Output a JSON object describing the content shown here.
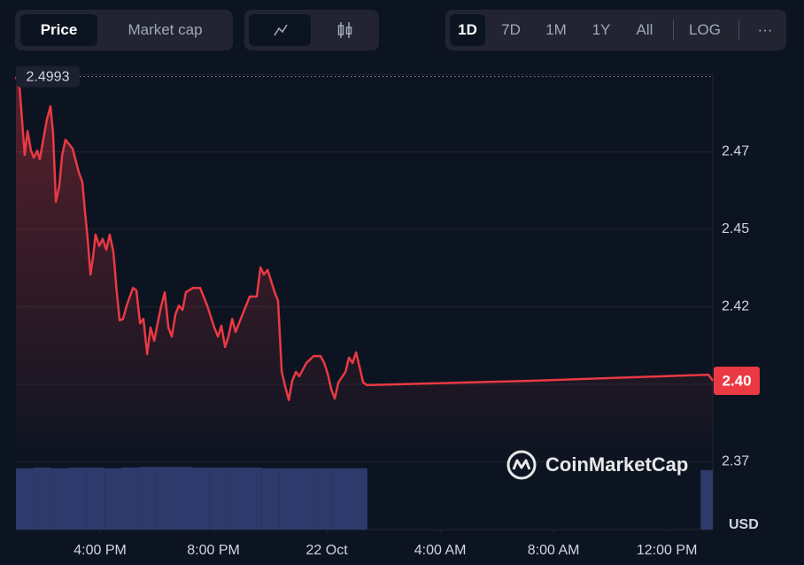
{
  "toolbar": {
    "views": [
      "Price",
      "Market cap"
    ],
    "ranges": [
      "1D",
      "7D",
      "1M",
      "1Y",
      "All"
    ],
    "log": "LOG",
    "more": "···"
  },
  "chart_data": {
    "type": "line",
    "color": "#ea3943",
    "x": [
      13.03,
      13.16,
      13.34,
      13.44,
      13.56,
      13.66,
      13.78,
      13.87,
      14.12,
      14.25,
      14.34,
      14.44,
      14.56,
      14.66,
      14.78,
      15.03,
      15.25,
      15.37,
      15.47,
      15.56,
      15.66,
      15.75,
      15.84,
      15.97,
      16.09,
      16.22,
      16.34,
      16.47,
      16.59,
      16.69,
      16.81,
      16.94,
      17.16,
      17.28,
      17.41,
      17.53,
      17.66,
      17.78,
      17.91,
      18.03,
      18.16,
      18.28,
      18.41,
      18.53,
      18.66,
      18.78,
      18.91,
      19.03,
      19.28,
      19.53,
      19.78,
      20.03,
      20.16,
      20.28,
      20.41,
      20.53,
      20.66,
      20.78,
      21.03,
      21.28,
      21.53,
      21.66,
      21.78,
      21.91,
      22.16,
      22.28,
      22.41,
      22.53,
      22.66,
      22.78,
      22.91,
      23.03,
      23.28,
      23.53,
      23.78,
      23.91,
      24.03,
      24.16,
      24.28,
      24.41,
      24.66,
      24.78,
      24.91,
      25.03,
      25.16,
      25.28,
      25.41,
      31.22,
      37.47,
      37.62
    ],
    "values": [
      2.4993,
      2.4954,
      2.474,
      2.4817,
      2.4754,
      2.4731,
      2.4754,
      2.4726,
      2.4854,
      2.4897,
      2.4811,
      2.4589,
      2.464,
      2.474,
      2.4789,
      2.476,
      2.4683,
      2.4654,
      2.4554,
      2.4469,
      2.4354,
      2.4411,
      2.4483,
      2.4446,
      2.4469,
      2.4434,
      2.4483,
      2.4426,
      2.4297,
      2.4206,
      2.4211,
      2.4254,
      2.4311,
      2.4303,
      2.4197,
      2.4211,
      2.4097,
      2.4183,
      2.414,
      2.4197,
      2.4254,
      2.4297,
      2.4183,
      2.4154,
      2.4226,
      2.4254,
      2.424,
      2.4297,
      2.4311,
      2.4311,
      2.4254,
      2.4183,
      2.4154,
      2.4189,
      2.412,
      2.4154,
      2.4211,
      2.4169,
      2.4226,
      2.4283,
      2.4283,
      2.4377,
      2.4354,
      2.4369,
      2.4297,
      2.4269,
      2.404,
      2.3994,
      2.3949,
      2.4011,
      2.404,
      2.4026,
      2.4069,
      2.4091,
      2.4091,
      2.4069,
      2.4034,
      2.3983,
      2.3954,
      2.4006,
      2.404,
      2.4086,
      2.4069,
      2.4103,
      2.4054,
      2.4006,
      2.3997,
      2.4011,
      2.4031,
      2.4011
    ],
    "high": 2.4993,
    "last_label": "2.40",
    "xlim": [
      13.03,
      37.62
    ],
    "xticks": [
      {
        "value": 16,
        "label": "4:00 PM"
      },
      {
        "value": 20,
        "label": "8:00 PM"
      },
      {
        "value": 24,
        "label": "22 Oct"
      },
      {
        "value": 28,
        "label": "4:00 AM"
      },
      {
        "value": 32,
        "label": "8:00 AM"
      },
      {
        "value": 36,
        "label": "12:00 PM"
      }
    ],
    "ylim": [
      2.3531,
      2.5
    ],
    "yticks": [
      {
        "value": 2.375,
        "label": "2.37"
      },
      {
        "value": 2.4,
        "label": "2.40"
      },
      {
        "value": 2.425,
        "label": "2.42"
      },
      2.45,
      {
        "value": 2.475,
        "label": "2.47"
      }
    ],
    "y_unit": "USD",
    "grid": true,
    "watermark": "CoinMarketCap",
    "volume": {
      "color": "#2d3a6b",
      "x": [
        13.34,
        13.96,
        14.58,
        15.2,
        15.82,
        16.44,
        17.06,
        17.68,
        18.3,
        18.92,
        19.54,
        20.16,
        20.78,
        21.4,
        22.02,
        22.64,
        23.26,
        23.88,
        24.5,
        25.12,
        37.5
      ],
      "values": [
        95,
        96,
        95,
        96,
        96,
        95,
        96,
        97,
        97,
        97,
        96,
        96,
        96,
        96,
        95,
        95,
        95,
        95,
        95,
        95,
        92
      ],
      "vlim": [
        0,
        100
      ]
    }
  }
}
